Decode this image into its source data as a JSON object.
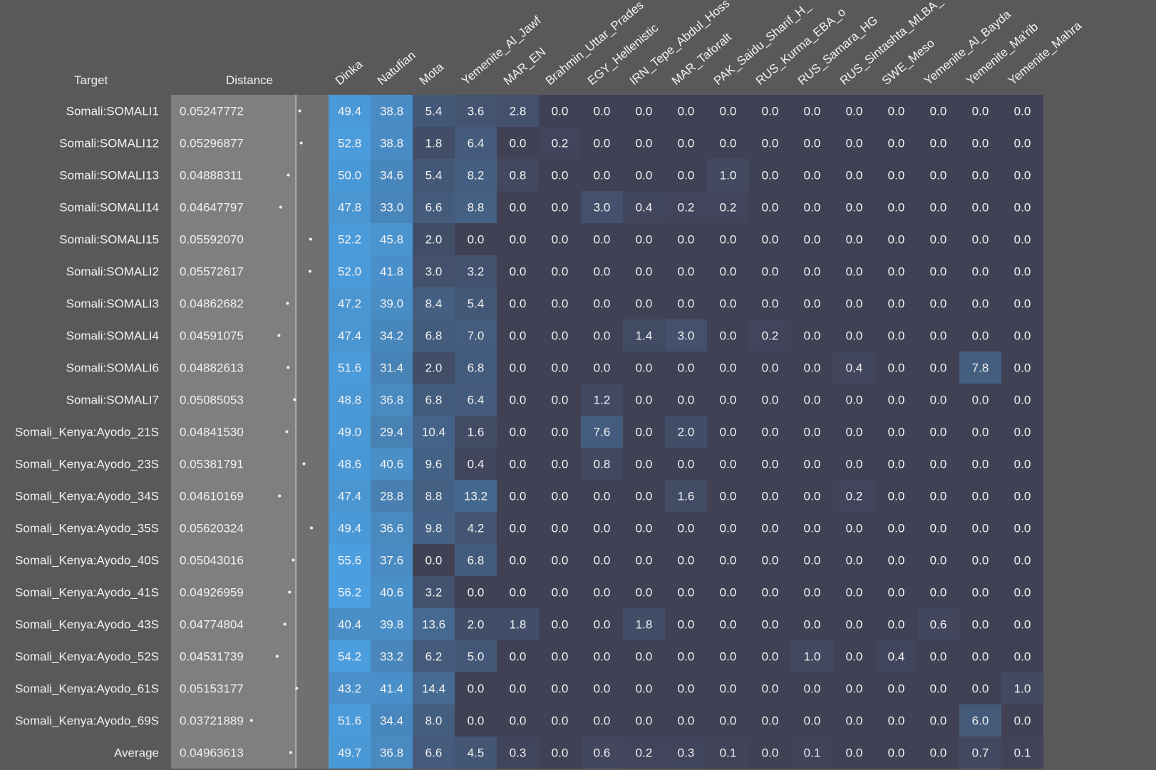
{
  "headers": {
    "target": "Target",
    "distance": "Distance"
  },
  "chart_data": {
    "type": "heatmap",
    "columns": [
      "Dinka",
      "Natufian",
      "Mota",
      "Yemenite_Al_Jawf",
      "MAR_EN",
      "Brahmin_Uttar_Prades",
      "EGY_Hellenistic",
      "IRN_Tepe_Abdul_Hoss",
      "MAR_Taforalt",
      "PAK_Saidu_Sharif_H_",
      "RUS_Kurma_EBA_o",
      "RUS_Samara_HG",
      "RUS_Sintashta_MLBA_",
      "SWE_Meso",
      "Yemenite_Al_Bayda",
      "Yemenite_Ma'rib",
      "Yemenite_Mahra"
    ],
    "rows": [
      {
        "target": "Somali:SOMALI1",
        "distance": "0.05247772",
        "values": [
          49.4,
          38.8,
          5.4,
          3.6,
          2.8,
          0.0,
          0.0,
          0.0,
          0.0,
          0.0,
          0.0,
          0.0,
          0.0,
          0.0,
          0.0,
          0.0,
          0.0
        ]
      },
      {
        "target": "Somali:SOMALI12",
        "distance": "0.05296877",
        "values": [
          52.8,
          38.8,
          1.8,
          6.4,
          0.0,
          0.2,
          0.0,
          0.0,
          0.0,
          0.0,
          0.0,
          0.0,
          0.0,
          0.0,
          0.0,
          0.0,
          0.0
        ]
      },
      {
        "target": "Somali:SOMALI13",
        "distance": "0.04888311",
        "values": [
          50.0,
          34.6,
          5.4,
          8.2,
          0.8,
          0.0,
          0.0,
          0.0,
          0.0,
          1.0,
          0.0,
          0.0,
          0.0,
          0.0,
          0.0,
          0.0,
          0.0
        ]
      },
      {
        "target": "Somali:SOMALI14",
        "distance": "0.04647797",
        "values": [
          47.8,
          33.0,
          6.6,
          8.8,
          0.0,
          0.0,
          3.0,
          0.4,
          0.2,
          0.2,
          0.0,
          0.0,
          0.0,
          0.0,
          0.0,
          0.0,
          0.0
        ]
      },
      {
        "target": "Somali:SOMALI15",
        "distance": "0.05592070",
        "values": [
          52.2,
          45.8,
          2.0,
          0.0,
          0.0,
          0.0,
          0.0,
          0.0,
          0.0,
          0.0,
          0.0,
          0.0,
          0.0,
          0.0,
          0.0,
          0.0,
          0.0
        ]
      },
      {
        "target": "Somali:SOMALI2",
        "distance": "0.05572617",
        "values": [
          52.0,
          41.8,
          3.0,
          3.2,
          0.0,
          0.0,
          0.0,
          0.0,
          0.0,
          0.0,
          0.0,
          0.0,
          0.0,
          0.0,
          0.0,
          0.0,
          0.0
        ]
      },
      {
        "target": "Somali:SOMALI3",
        "distance": "0.04862682",
        "values": [
          47.2,
          39.0,
          8.4,
          5.4,
          0.0,
          0.0,
          0.0,
          0.0,
          0.0,
          0.0,
          0.0,
          0.0,
          0.0,
          0.0,
          0.0,
          0.0,
          0.0
        ]
      },
      {
        "target": "Somali:SOMALI4",
        "distance": "0.04591075",
        "values": [
          47.4,
          34.2,
          6.8,
          7.0,
          0.0,
          0.0,
          0.0,
          1.4,
          3.0,
          0.0,
          0.2,
          0.0,
          0.0,
          0.0,
          0.0,
          0.0,
          0.0
        ]
      },
      {
        "target": "Somali:SOMALI6",
        "distance": "0.04882613",
        "values": [
          51.6,
          31.4,
          2.0,
          6.8,
          0.0,
          0.0,
          0.0,
          0.0,
          0.0,
          0.0,
          0.0,
          0.0,
          0.4,
          0.0,
          0.0,
          7.8,
          0.0
        ]
      },
      {
        "target": "Somali:SOMALI7",
        "distance": "0.05085053",
        "values": [
          48.8,
          36.8,
          6.8,
          6.4,
          0.0,
          0.0,
          1.2,
          0.0,
          0.0,
          0.0,
          0.0,
          0.0,
          0.0,
          0.0,
          0.0,
          0.0,
          0.0
        ]
      },
      {
        "target": "Somali_Kenya:Ayodo_21S",
        "distance": "0.04841530",
        "values": [
          49.0,
          29.4,
          10.4,
          1.6,
          0.0,
          0.0,
          7.6,
          0.0,
          2.0,
          0.0,
          0.0,
          0.0,
          0.0,
          0.0,
          0.0,
          0.0,
          0.0
        ]
      },
      {
        "target": "Somali_Kenya:Ayodo_23S",
        "distance": "0.05381791",
        "values": [
          48.6,
          40.6,
          9.6,
          0.4,
          0.0,
          0.0,
          0.8,
          0.0,
          0.0,
          0.0,
          0.0,
          0.0,
          0.0,
          0.0,
          0.0,
          0.0,
          0.0
        ]
      },
      {
        "target": "Somali_Kenya:Ayodo_34S",
        "distance": "0.04610169",
        "values": [
          47.4,
          28.8,
          8.8,
          13.2,
          0.0,
          0.0,
          0.0,
          0.0,
          1.6,
          0.0,
          0.0,
          0.0,
          0.2,
          0.0,
          0.0,
          0.0,
          0.0
        ]
      },
      {
        "target": "Somali_Kenya:Ayodo_35S",
        "distance": "0.05620324",
        "values": [
          49.4,
          36.6,
          9.8,
          4.2,
          0.0,
          0.0,
          0.0,
          0.0,
          0.0,
          0.0,
          0.0,
          0.0,
          0.0,
          0.0,
          0.0,
          0.0,
          0.0
        ]
      },
      {
        "target": "Somali_Kenya:Ayodo_40S",
        "distance": "0.05043016",
        "values": [
          55.6,
          37.6,
          0.0,
          6.8,
          0.0,
          0.0,
          0.0,
          0.0,
          0.0,
          0.0,
          0.0,
          0.0,
          0.0,
          0.0,
          0.0,
          0.0,
          0.0
        ]
      },
      {
        "target": "Somali_Kenya:Ayodo_41S",
        "distance": "0.04926959",
        "values": [
          56.2,
          40.6,
          3.2,
          0.0,
          0.0,
          0.0,
          0.0,
          0.0,
          0.0,
          0.0,
          0.0,
          0.0,
          0.0,
          0.0,
          0.0,
          0.0,
          0.0
        ]
      },
      {
        "target": "Somali_Kenya:Ayodo_43S",
        "distance": "0.04774804",
        "values": [
          40.4,
          39.8,
          13.6,
          2.0,
          1.8,
          0.0,
          0.0,
          1.8,
          0.0,
          0.0,
          0.0,
          0.0,
          0.0,
          0.0,
          0.6,
          0.0,
          0.0
        ]
      },
      {
        "target": "Somali_Kenya:Ayodo_52S",
        "distance": "0.04531739",
        "values": [
          54.2,
          33.2,
          6.2,
          5.0,
          0.0,
          0.0,
          0.0,
          0.0,
          0.0,
          0.0,
          0.0,
          1.0,
          0.0,
          0.4,
          0.0,
          0.0,
          0.0
        ]
      },
      {
        "target": "Somali_Kenya:Ayodo_61S",
        "distance": "0.05153177",
        "values": [
          43.2,
          41.4,
          14.4,
          0.0,
          0.0,
          0.0,
          0.0,
          0.0,
          0.0,
          0.0,
          0.0,
          0.0,
          0.0,
          0.0,
          0.0,
          0.0,
          1.0
        ]
      },
      {
        "target": "Somali_Kenya:Ayodo_69S",
        "distance": "0.03721889",
        "values": [
          51.6,
          34.4,
          8.0,
          0.0,
          0.0,
          0.0,
          0.0,
          0.0,
          0.0,
          0.0,
          0.0,
          0.0,
          0.0,
          0.0,
          0.0,
          6.0,
          0.0
        ]
      }
    ],
    "average": {
      "target": "Average",
      "distance": "0.04963613",
      "values": [
        49.7,
        36.8,
        6.6,
        4.5,
        0.3,
        0.0,
        0.6,
        0.2,
        0.3,
        0.1,
        0.0,
        0.1,
        0.0,
        0.0,
        0.0,
        0.7,
        0.1
      ]
    },
    "distance_scale": [
      0.035,
      0.058
    ],
    "colors": {
      "background": "#595959",
      "distance_panel": "#7f7f7f",
      "cell_zero": "#414155",
      "cell_max": "#4b9fe0",
      "text": "#f2f2f2"
    }
  }
}
